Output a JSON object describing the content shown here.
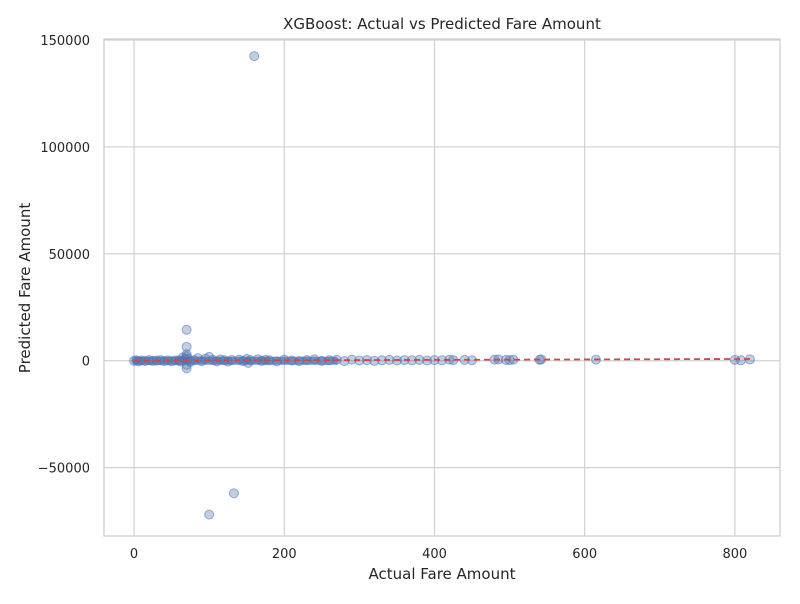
{
  "chart_data": {
    "type": "scatter",
    "title": "XGBoost: Actual vs Predicted Fare Amount",
    "xlabel": "Actual Fare Amount",
    "ylabel": "Predicted Fare Amount",
    "xlim": [
      -40,
      860
    ],
    "ylim": [
      -82000,
      150500
    ],
    "x_ticks": [
      0,
      200,
      400,
      600,
      800
    ],
    "y_ticks": [
      -50000,
      0,
      50000,
      100000,
      150000
    ],
    "x_tick_labels": [
      "0",
      "200",
      "400",
      "600",
      "800"
    ],
    "y_tick_labels": [
      "−50000",
      "0",
      "50000",
      "100000",
      "150000"
    ],
    "grid": true,
    "legend": "none",
    "colors": {
      "points": "#4c72b0",
      "reference_line": "#d64545",
      "grid": "#d0d0d0",
      "frame": "#cccccc",
      "text": "#262626"
    },
    "series": [
      {
        "values": [
          {
            "x": 0,
            "y": 0
          },
          {
            "x": 3,
            "y": 200
          },
          {
            "x": 6,
            "y": -300
          },
          {
            "x": 10,
            "y": 100
          },
          {
            "x": 15,
            "y": -150
          },
          {
            "x": 20,
            "y": 250
          },
          {
            "x": 25,
            "y": -100
          },
          {
            "x": 30,
            "y": 50
          },
          {
            "x": 35,
            "y": 300
          },
          {
            "x": 40,
            "y": -200
          },
          {
            "x": 45,
            "y": 150
          },
          {
            "x": 50,
            "y": -250
          },
          {
            "x": 55,
            "y": 100
          },
          {
            "x": 60,
            "y": 200
          },
          {
            "x": 62,
            "y": -400
          },
          {
            "x": 65,
            "y": 1500
          },
          {
            "x": 68,
            "y": 800
          },
          {
            "x": 70,
            "y": 14500
          },
          {
            "x": 70,
            "y": 6500
          },
          {
            "x": 70,
            "y": 3000
          },
          {
            "x": 70,
            "y": 2000
          },
          {
            "x": 70,
            "y": -2000
          },
          {
            "x": 70,
            "y": -3500
          },
          {
            "x": 72,
            "y": 1000
          },
          {
            "x": 75,
            "y": -500
          },
          {
            "x": 80,
            "y": 300
          },
          {
            "x": 85,
            "y": 1200
          },
          {
            "x": 90,
            "y": -200
          },
          {
            "x": 95,
            "y": 900
          },
          {
            "x": 100,
            "y": 1800
          },
          {
            "x": 100,
            "y": -72000
          },
          {
            "x": 105,
            "y": 400
          },
          {
            "x": 110,
            "y": -300
          },
          {
            "x": 115,
            "y": 600
          },
          {
            "x": 120,
            "y": 200
          },
          {
            "x": 125,
            "y": -400
          },
          {
            "x": 130,
            "y": 300
          },
          {
            "x": 133,
            "y": -62000
          },
          {
            "x": 140,
            "y": 500
          },
          {
            "x": 145,
            "y": -200
          },
          {
            "x": 150,
            "y": 800
          },
          {
            "x": 152,
            "y": -1000
          },
          {
            "x": 155,
            "y": 300
          },
          {
            "x": 160,
            "y": 142500
          },
          {
            "x": 165,
            "y": 700
          },
          {
            "x": 170,
            "y": -100
          },
          {
            "x": 175,
            "y": 400
          },
          {
            "x": 180,
            "y": 200
          },
          {
            "x": 190,
            "y": -300
          },
          {
            "x": 200,
            "y": 500
          },
          {
            "x": 210,
            "y": 100
          },
          {
            "x": 220,
            "y": -200
          },
          {
            "x": 230,
            "y": 300
          },
          {
            "x": 240,
            "y": 600
          },
          {
            "x": 250,
            "y": -100
          },
          {
            "x": 260,
            "y": 200
          },
          {
            "x": 270,
            "y": 400
          },
          {
            "x": 280,
            "y": -200
          },
          {
            "x": 290,
            "y": 500
          },
          {
            "x": 300,
            "y": 100
          },
          {
            "x": 310,
            "y": 300
          },
          {
            "x": 320,
            "y": -100
          },
          {
            "x": 330,
            "y": 200
          },
          {
            "x": 340,
            "y": 400
          },
          {
            "x": 350,
            "y": 100
          },
          {
            "x": 360,
            "y": 300
          },
          {
            "x": 370,
            "y": 200
          },
          {
            "x": 380,
            "y": 400
          },
          {
            "x": 390,
            "y": 100
          },
          {
            "x": 400,
            "y": 300
          },
          {
            "x": 410,
            "y": 200
          },
          {
            "x": 420,
            "y": 500
          },
          {
            "x": 425,
            "y": 300
          },
          {
            "x": 440,
            "y": 400
          },
          {
            "x": 450,
            "y": 200
          },
          {
            "x": 480,
            "y": 500
          },
          {
            "x": 485,
            "y": 600
          },
          {
            "x": 495,
            "y": 400
          },
          {
            "x": 500,
            "y": 300
          },
          {
            "x": 505,
            "y": 500
          },
          {
            "x": 540,
            "y": 400
          },
          {
            "x": 542,
            "y": 600
          },
          {
            "x": 615,
            "y": 500
          },
          {
            "x": 800,
            "y": 400
          },
          {
            "x": 808,
            "y": 200
          },
          {
            "x": 820,
            "y": 600
          }
        ]
      }
    ],
    "reference_line": {
      "x": [
        0,
        820
      ],
      "y": [
        0,
        820
      ]
    }
  }
}
